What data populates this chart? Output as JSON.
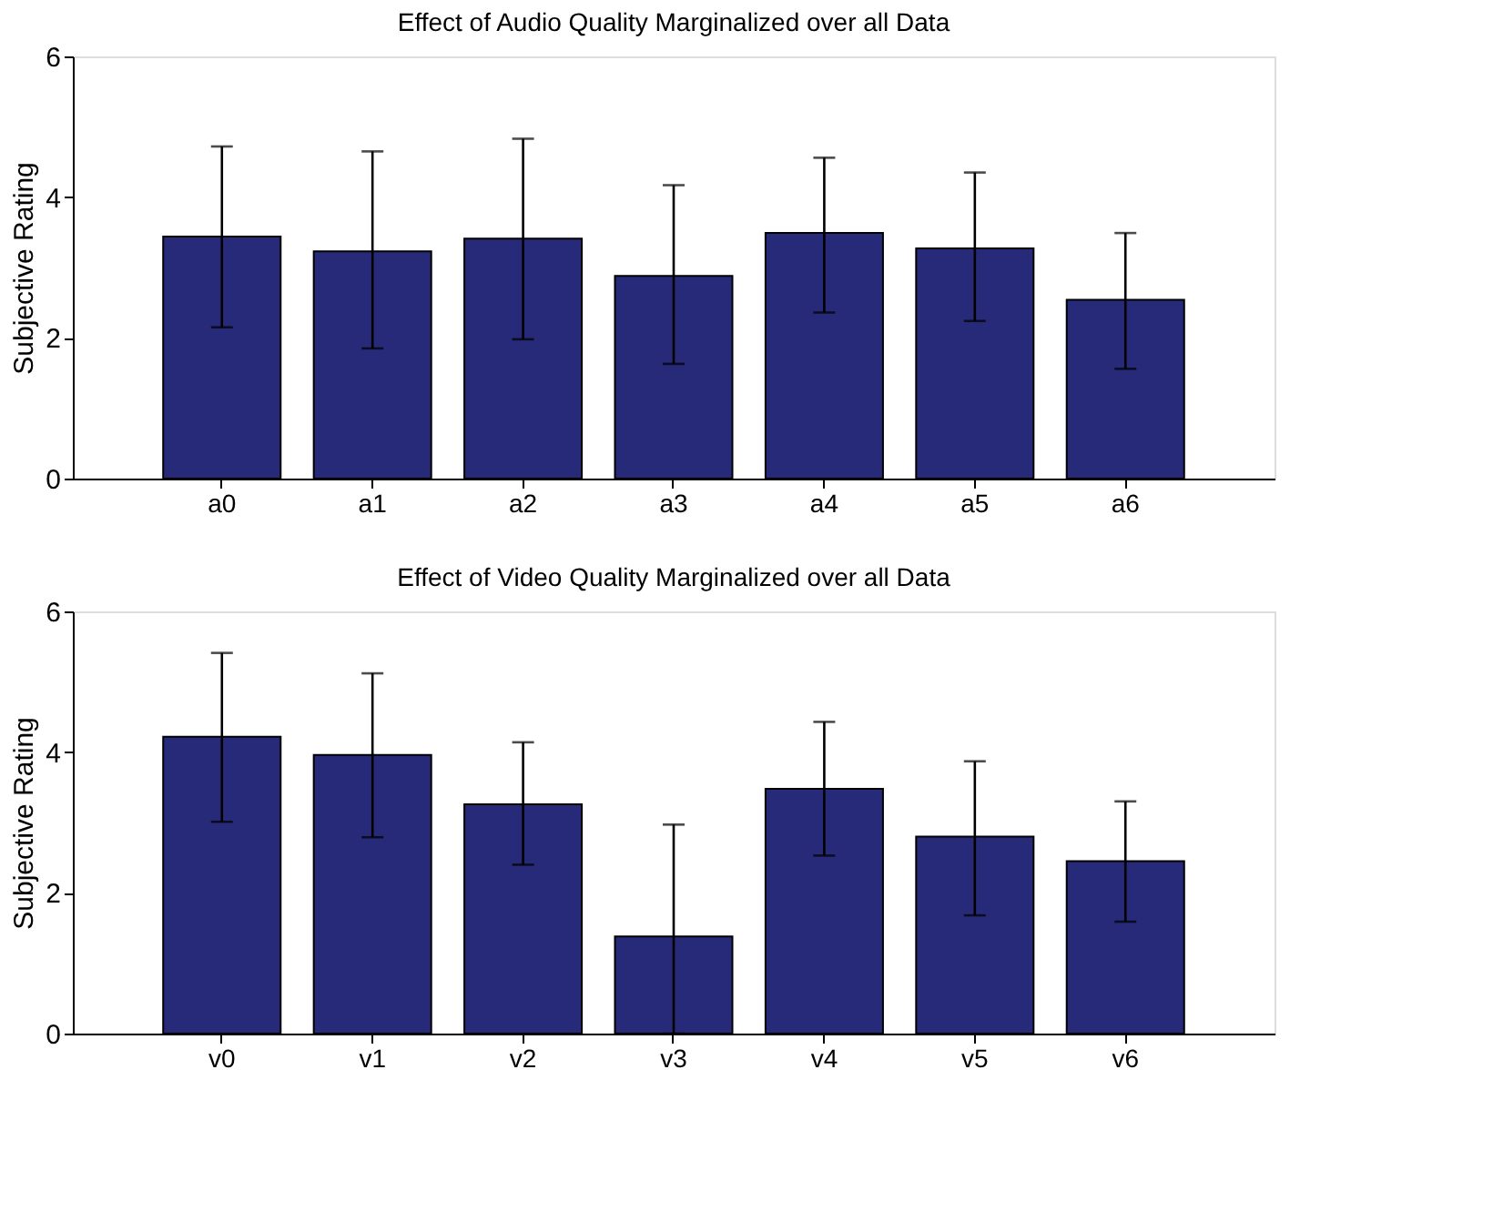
{
  "chart_data": [
    {
      "type": "bar",
      "title": "Effect of Audio Quality Marginalized over all Data",
      "ylabel": "Subjective Rating",
      "categories": [
        "a0",
        "a1",
        "a2",
        "a3",
        "a4",
        "a5",
        "a6"
      ],
      "values": [
        3.44,
        3.23,
        3.41,
        2.88,
        3.49,
        3.27,
        2.54
      ],
      "color": "#272a78",
      "errors": [
        [
          2.15,
          4.72
        ],
        [
          1.85,
          4.65
        ],
        [
          1.98,
          4.83
        ],
        [
          1.63,
          4.17
        ],
        [
          2.36,
          4.56
        ],
        [
          2.24,
          4.35
        ],
        [
          1.56,
          3.49
        ]
      ],
      "ylim": [
        0,
        6
      ],
      "yticks": [
        0,
        2,
        4,
        6
      ],
      "grid": false
    },
    {
      "type": "bar",
      "title": "Effect of Video Quality Marginalized over all Data",
      "ylabel": "Subjective Rating",
      "categories": [
        "v0",
        "v1",
        "v2",
        "v3",
        "v4",
        "v5",
        "v6"
      ],
      "values": [
        4.22,
        3.96,
        3.26,
        1.38,
        3.48,
        2.8,
        2.45
      ],
      "color": "#272a78",
      "errors": [
        [
          3.01,
          5.41
        ],
        [
          2.79,
          5.12
        ],
        [
          2.4,
          4.14
        ],
        [
          0,
          2.97
        ],
        [
          2.53,
          4.43
        ],
        [
          1.68,
          3.87
        ],
        [
          1.59,
          3.3
        ]
      ],
      "ylim": [
        0,
        6
      ],
      "yticks": [
        0,
        2,
        4,
        6
      ],
      "grid": false
    }
  ]
}
